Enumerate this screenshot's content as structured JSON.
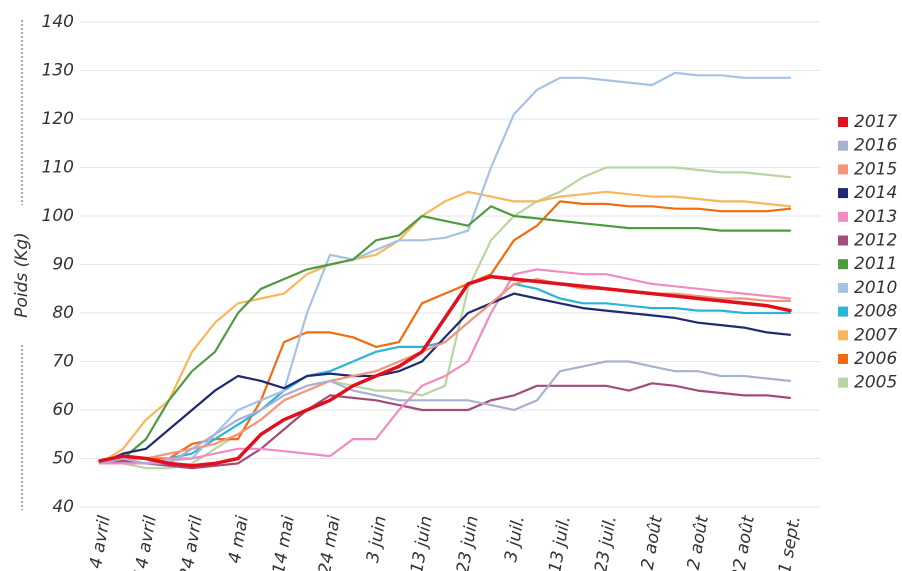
{
  "chart_data": {
    "type": "line",
    "y_label": "Poids (Kg)",
    "categories": [
      "4 avril",
      null,
      "14 avril",
      null,
      "24 avril",
      null,
      "4 mai",
      null,
      "14 mai",
      null,
      "24 mai",
      null,
      "3 juin",
      null,
      "13 juin",
      null,
      "23 juin",
      null,
      "3 juil.",
      null,
      "13 juil.",
      null,
      "23 juil.",
      null,
      "2 août",
      null,
      "12 août",
      null,
      "22 août",
      null,
      "1 sept."
    ],
    "ylim": [
      40,
      140
    ],
    "yticks": [
      40,
      50,
      60,
      70,
      80,
      90,
      100,
      110,
      120,
      130,
      140
    ],
    "grid": true,
    "legend": "right",
    "series": [
      {
        "name": "2017",
        "color": "#e0101e",
        "values": [
          49.5,
          50.5,
          50,
          49,
          48.5,
          49,
          50,
          55,
          58,
          60,
          62,
          65,
          67,
          69,
          72,
          79,
          86,
          87.5,
          87,
          86.5,
          86,
          85.5,
          85,
          84.5,
          84,
          83.5,
          83,
          82.5,
          82,
          81.5,
          80.5
        ]
      },
      {
        "name": "2016",
        "color": "#a9b1d1",
        "values": [
          49,
          50,
          49,
          49,
          52,
          55,
          58,
          60,
          63,
          65,
          66,
          64,
          63,
          62,
          62,
          62,
          62,
          61,
          60,
          62,
          68,
          69,
          70,
          70,
          69,
          68,
          68,
          67,
          67,
          66.5,
          66
        ]
      },
      {
        "name": "2015",
        "color": "#f3967b",
        "values": [
          49,
          50,
          50,
          51,
          52,
          53,
          55,
          58,
          62,
          64,
          66,
          67,
          68,
          70,
          72,
          74,
          78,
          82,
          86,
          87,
          86,
          85,
          85,
          84.5,
          84,
          84,
          83.5,
          83,
          83,
          82.5,
          82.5
        ]
      },
      {
        "name": "2014",
        "color": "#1f2a70",
        "values": [
          49,
          51,
          52,
          56,
          60,
          64,
          67,
          66,
          64.5,
          67,
          67.5,
          67,
          67,
          68,
          70,
          75,
          80,
          82,
          84,
          83,
          82,
          81,
          80.5,
          80,
          79.5,
          79,
          78,
          77.5,
          77,
          76,
          75.5
        ]
      },
      {
        "name": "2013",
        "color": "#f08cc2",
        "values": [
          49,
          49,
          49,
          50,
          50,
          51,
          52,
          52,
          51.5,
          51,
          50.5,
          54,
          54,
          60,
          65,
          67,
          70,
          80,
          88,
          89,
          88.5,
          88,
          88,
          87,
          86,
          85.5,
          85,
          84.5,
          84,
          83.5,
          83
        ]
      },
      {
        "name": "2012",
        "color": "#a24c7a",
        "values": [
          49,
          49.5,
          49,
          48.5,
          48,
          48.5,
          49,
          52,
          56,
          60,
          63,
          62.5,
          62,
          61,
          60,
          60,
          60,
          62,
          63,
          65,
          65,
          65,
          65,
          64,
          65.5,
          65,
          64,
          63.5,
          63,
          63,
          62.5
        ]
      },
      {
        "name": "2011",
        "color": "#4f9b3f",
        "values": [
          49,
          50,
          54,
          62,
          68,
          72,
          80,
          85,
          87,
          89,
          90,
          91,
          95,
          96,
          100,
          99,
          98,
          102,
          100,
          99.5,
          99,
          98.5,
          98,
          97.5,
          97.5,
          97.5,
          97.5,
          97,
          97,
          97,
          97
        ]
      },
      {
        "name": "2010",
        "color": "#a6c2e4",
        "values": [
          49,
          49,
          49,
          49.5,
          50,
          55,
          60,
          62,
          64,
          80,
          92,
          91,
          93,
          95,
          95,
          95.5,
          97,
          110,
          121,
          126,
          128.5,
          128.5,
          128,
          127.5,
          127,
          129.5,
          129,
          129,
          128.5,
          128.5,
          128.5
        ]
      },
      {
        "name": "2008",
        "color": "#2bb5da",
        "values": [
          49,
          49,
          49,
          50,
          51,
          54,
          57,
          60,
          64,
          67,
          68,
          70,
          72,
          73,
          73,
          74,
          78,
          82,
          86,
          85,
          83,
          82,
          82,
          81.5,
          81,
          81,
          80.5,
          80.5,
          80,
          80,
          80
        ]
      },
      {
        "name": "2007",
        "color": "#f9b65b",
        "values": [
          49,
          52,
          58,
          62,
          72,
          78,
          82,
          83,
          84,
          88,
          90,
          91,
          92,
          95,
          100,
          103,
          105,
          104,
          103,
          103,
          104,
          104.5,
          105,
          104.5,
          104,
          104,
          103.5,
          103,
          103,
          102.5,
          102
        ]
      },
      {
        "name": "2006",
        "color": "#f06b12",
        "values": [
          49,
          50,
          50,
          50,
          53,
          54,
          54,
          62,
          74,
          76,
          76,
          75,
          73,
          74,
          82,
          84,
          86,
          88,
          95,
          98,
          103,
          102.5,
          102.5,
          102,
          102,
          101.5,
          101.5,
          101,
          101,
          101,
          101.5
        ]
      },
      {
        "name": "2005",
        "color": "#b9d5a1",
        "values": [
          49,
          49,
          48,
          48,
          49,
          52,
          55,
          58,
          62,
          64,
          66,
          65,
          64,
          64,
          63,
          65,
          85,
          95,
          100,
          103,
          105,
          108,
          110,
          110,
          110,
          110,
          109.5,
          109,
          109,
          108.5,
          108
        ]
      }
    ]
  }
}
